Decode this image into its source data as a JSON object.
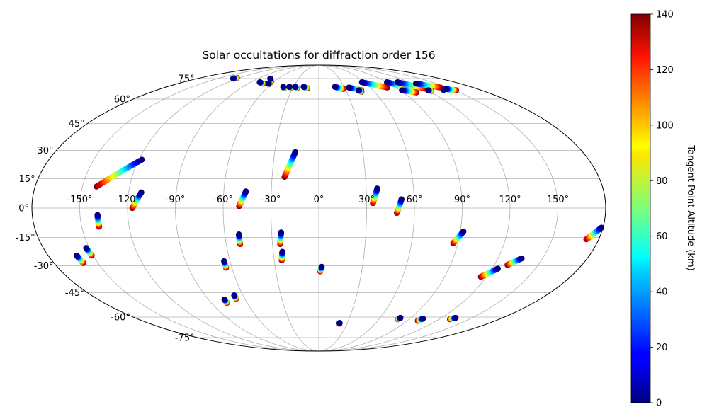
{
  "chart_data": {
    "type": "scatter",
    "projection": "mollweide",
    "title": "Solar occultations for diffraction order 156",
    "grid": true,
    "longitude_ticks": [
      {
        "value": -150,
        "label": "-150°"
      },
      {
        "value": -120,
        "label": "-120°"
      },
      {
        "value": -90,
        "label": "-90°"
      },
      {
        "value": -60,
        "label": "-60°"
      },
      {
        "value": -30,
        "label": "-30°"
      },
      {
        "value": 0,
        "label": "0°"
      },
      {
        "value": 30,
        "label": "30°"
      },
      {
        "value": 60,
        "label": "60°"
      },
      {
        "value": 90,
        "label": "90°"
      },
      {
        "value": 120,
        "label": "120°"
      },
      {
        "value": 150,
        "label": "150°"
      }
    ],
    "latitude_ticks": [
      {
        "value": 75,
        "label": "75°"
      },
      {
        "value": 60,
        "label": "60°"
      },
      {
        "value": 45,
        "label": "45°"
      },
      {
        "value": 30,
        "label": "30°"
      },
      {
        "value": 15,
        "label": "15°"
      },
      {
        "value": 0,
        "label": "0°"
      },
      {
        "value": -15,
        "label": "-15°"
      },
      {
        "value": -30,
        "label": "-30°"
      },
      {
        "value": -45,
        "label": "-45°"
      },
      {
        "value": -60,
        "label": "-60°"
      },
      {
        "value": -75,
        "label": "-75°"
      }
    ],
    "colorbar": {
      "label": "Tangent Point Altitude (km)",
      "range": [
        0,
        140
      ],
      "colormap": "jet",
      "ticks": [
        {
          "value": 0,
          "label": "0"
        },
        {
          "value": 20,
          "label": "20"
        },
        {
          "value": 40,
          "label": "40"
        },
        {
          "value": 60,
          "label": "60"
        },
        {
          "value": 80,
          "label": "80"
        },
        {
          "value": 100,
          "label": "100"
        },
        {
          "value": 120,
          "label": "120"
        },
        {
          "value": 140,
          "label": "140"
        }
      ]
    },
    "occultations": [
      {
        "lon0": -118,
        "lat0": 25,
        "lon1": -141,
        "lat1": 11
      },
      {
        "lon0": -112,
        "lat0": 8,
        "lon1": -117,
        "lat1": 0
      },
      {
        "lon0": -16,
        "lat0": 29,
        "lon1": -22,
        "lat1": 16
      },
      {
        "lon0": -46,
        "lat0": 8.5,
        "lon1": -50,
        "lat1": 1
      },
      {
        "lon0": 37,
        "lat0": 10,
        "lon1": 34,
        "lat1": 2.5
      },
      {
        "lon0": 52,
        "lat0": 4.5,
        "lon1": 49,
        "lat1": -2.5
      },
      {
        "lon0": -139,
        "lat0": -3.5,
        "lon1": -139,
        "lat1": -9.5
      },
      {
        "lon0": -51,
        "lat0": -13.5,
        "lon1": -51,
        "lat1": -18.5
      },
      {
        "lon0": -24,
        "lat0": -12.5,
        "lon1": -25,
        "lat1": -18.5
      },
      {
        "lon0": -24,
        "lat0": -22.5,
        "lon1": -25,
        "lat1": -27
      },
      {
        "lon0": -64,
        "lat0": -27.5,
        "lon1": -64,
        "lat1": -31
      },
      {
        "lon0": -161,
        "lat0": -24.5,
        "lon1": -160,
        "lat1": -28.5
      },
      {
        "lon0": -152,
        "lat0": -20.5,
        "lon1": -151,
        "lat1": -24.5
      },
      {
        "lon0": 92,
        "lat0": -12,
        "lon1": 87,
        "lat1": -18
      },
      {
        "lon0": 179,
        "lat0": -10,
        "lon1": 172,
        "lat1": -16
      },
      {
        "lon0": 136,
        "lat0": -26,
        "lon1": 129,
        "lat1": -29.5
      },
      {
        "lon0": 124,
        "lat0": -31.5,
        "lon1": 116,
        "lat1": -36
      },
      {
        "lon0": 2,
        "lat0": -30.5,
        "lon1": 1,
        "lat1": -33
      },
      {
        "lon0": -67,
        "lat0": -46.5,
        "lon1": -67,
        "lat1": -48.5
      },
      {
        "lon0": -77,
        "lat0": -49,
        "lon1": -77,
        "lat1": -51
      },
      {
        "lon0": 22,
        "lat0": -64,
        "lon1": 22,
        "lat1": -64.5
      },
      {
        "lon0": 80,
        "lat0": -60.5,
        "lon1": 79,
        "lat1": -61.5
      },
      {
        "lon0": 103,
        "lat0": -61,
        "lon1": 101,
        "lat1": -62.5
      },
      {
        "lon0": 134,
        "lat0": -60.5,
        "lon1": 131,
        "lat1": -61.5
      },
      {
        "lon0": -127,
        "lat0": 75,
        "lon1": -124,
        "lat1": 75.5
      },
      {
        "lon0": -72,
        "lat0": 75,
        "lon1": -65,
        "lat1": 73
      },
      {
        "lon0": -78,
        "lat0": 72,
        "lon1": -71,
        "lat1": 71
      },
      {
        "lon0": -64,
        "lat0": 71,
        "lon1": -62,
        "lat1": 70.5
      },
      {
        "lon0": -42,
        "lat0": 68.5,
        "lon1": -40,
        "lat1": 67.5
      },
      {
        "lon0": -35,
        "lat0": 68.5,
        "lon1": -32,
        "lat1": 68
      },
      {
        "lon0": -28,
        "lat0": 68.5,
        "lon1": -25,
        "lat1": 67.5
      },
      {
        "lon0": -18,
        "lat0": 68.5,
        "lon1": -13,
        "lat1": 67.5
      },
      {
        "lon0": 19,
        "lat0": 68.5,
        "lon1": 28,
        "lat1": 67
      },
      {
        "lon0": 35,
        "lat0": 68,
        "lon1": 47,
        "lat1": 66
      },
      {
        "lon0": 57,
        "lat0": 72,
        "lon1": 80,
        "lat1": 68
      },
      {
        "lon0": 90,
        "lat0": 72,
        "lon1": 104,
        "lat1": 68
      },
      {
        "lon0": 104,
        "lat0": 72,
        "lon1": 122,
        "lat1": 67
      },
      {
        "lon0": 124,
        "lat0": 71,
        "lon1": 142,
        "lat1": 68
      },
      {
        "lon0": 92,
        "lat0": 66,
        "lon1": 104,
        "lat1": 64.5
      },
      {
        "lon0": 144,
        "lat0": 67,
        "lon1": 152,
        "lat1": 66
      },
      {
        "lon0": 44,
        "lat0": 66,
        "lon1": 46,
        "lat1": 65
      },
      {
        "lon0": 121,
        "lat0": 66,
        "lon1": 123,
        "lat1": 65.5
      },
      {
        "lon0": 140,
        "lat0": 66.5,
        "lon1": 138,
        "lat1": 66
      }
    ]
  }
}
